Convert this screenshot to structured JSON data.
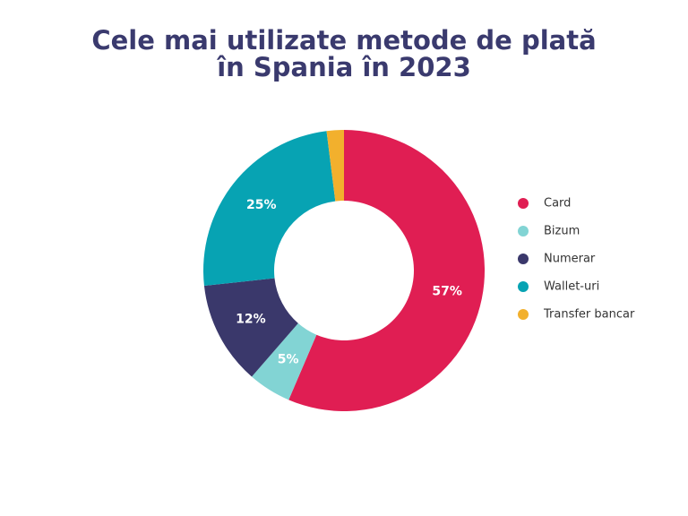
{
  "chart_data": {
    "type": "donut",
    "title": "Cele mai utilizate metode de plată în Spania în 2023",
    "categories": [
      "Card",
      "Bizum",
      "Numerar",
      "Wallet-uri",
      "Transfer bancar"
    ],
    "values": [
      57,
      5,
      12,
      25,
      2
    ],
    "value_labels": [
      "57%",
      "5%",
      "12%",
      "25%",
      null
    ],
    "colors": [
      "#e01e53",
      "#82d4d4",
      "#3a386b",
      "#07a3b3",
      "#f2b02d"
    ],
    "legend": "right"
  }
}
